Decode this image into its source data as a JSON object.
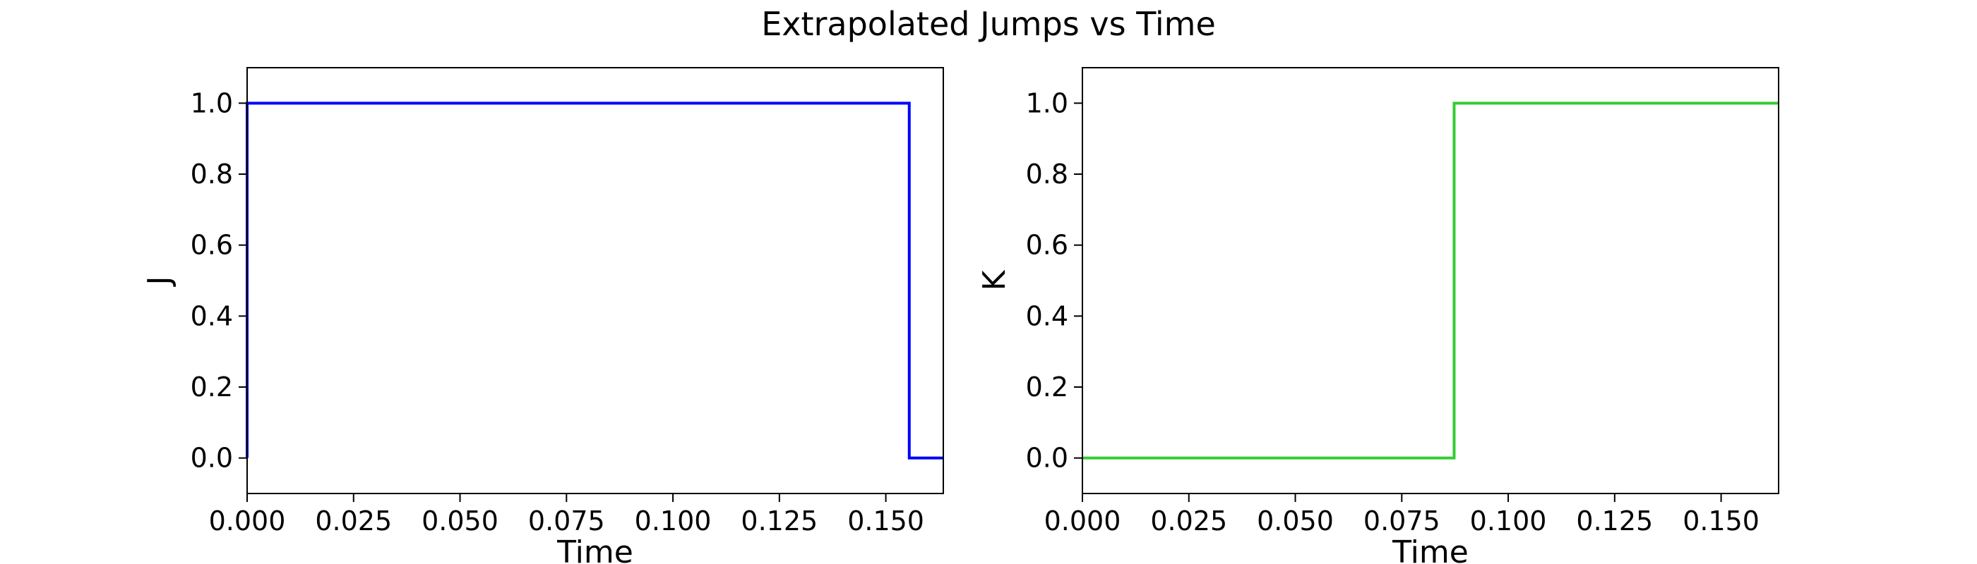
{
  "figure_title": "Extrapolated Jumps vs Time",
  "chart_data": [
    {
      "type": "line",
      "title": "",
      "xlabel": "Time",
      "ylabel": "J",
      "xlim": [
        0.0,
        0.1635
      ],
      "ylim": [
        -0.1,
        1.1
      ],
      "xticks": [
        0.0,
        0.025,
        0.05,
        0.075,
        0.1,
        0.125,
        0.15
      ],
      "xtick_labels": [
        "0.000",
        "0.025",
        "0.050",
        "0.075",
        "0.100",
        "0.125",
        "0.150"
      ],
      "yticks": [
        0.0,
        0.2,
        0.4,
        0.6,
        0.8,
        1.0
      ],
      "ytick_labels": [
        "0.0",
        "0.2",
        "0.4",
        "0.6",
        "0.8",
        "1.0"
      ],
      "grid": false,
      "series": [
        {
          "color": "#0000ff",
          "step": true,
          "x": [
            0.0,
            0.0,
            0.1555,
            0.1555,
            0.1635
          ],
          "y": [
            0.0,
            1.0,
            1.0,
            0.0,
            0.0
          ]
        }
      ]
    },
    {
      "type": "line",
      "title": "",
      "xlabel": "Time",
      "ylabel": "K",
      "xlim": [
        0.0,
        0.1635
      ],
      "ylim": [
        -0.1,
        1.1
      ],
      "xticks": [
        0.0,
        0.025,
        0.05,
        0.075,
        0.1,
        0.125,
        0.15
      ],
      "xtick_labels": [
        "0.000",
        "0.025",
        "0.050",
        "0.075",
        "0.100",
        "0.125",
        "0.150"
      ],
      "yticks": [
        0.0,
        0.2,
        0.4,
        0.6,
        0.8,
        1.0
      ],
      "ytick_labels": [
        "0.0",
        "0.2",
        "0.4",
        "0.6",
        "0.8",
        "1.0"
      ],
      "grid": false,
      "series": [
        {
          "color": "#32cd32",
          "step": true,
          "x": [
            0.0,
            0.0873,
            0.0873,
            0.1635
          ],
          "y": [
            0.0,
            0.0,
            1.0,
            1.0
          ]
        }
      ]
    }
  ]
}
